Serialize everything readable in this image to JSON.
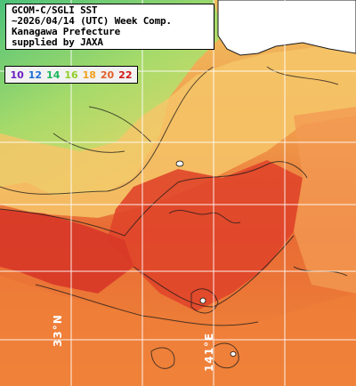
{
  "title": {
    "line1": "GCOM-C/SGLI SST",
    "line2": "~2026/04/14 (UTC) Week Comp.",
    "line3": "Kanagawa Prefecture",
    "line4": "supplied by JAXA"
  },
  "legend": {
    "items": [
      {
        "label": "10",
        "color": "#6a1fc2"
      },
      {
        "label": "12",
        "color": "#1e6fd6"
      },
      {
        "label": "14",
        "color": "#1ab85a"
      },
      {
        "label": "16",
        "color": "#8fcf2a"
      },
      {
        "label": "18",
        "color": "#f0a020"
      },
      {
        "label": "20",
        "color": "#e0602a"
      },
      {
        "label": "22",
        "color": "#d01818"
      }
    ]
  },
  "grid_labels": {
    "lat_left": "33°N",
    "lon_bottom": "141°E"
  },
  "colors": {
    "land": "#ffffff",
    "cold": "#7ad46a",
    "warm": "#f2a05a",
    "hot": "#e04a2a",
    "grid": "#ffffff",
    "contour": "#1a1a1a"
  }
}
